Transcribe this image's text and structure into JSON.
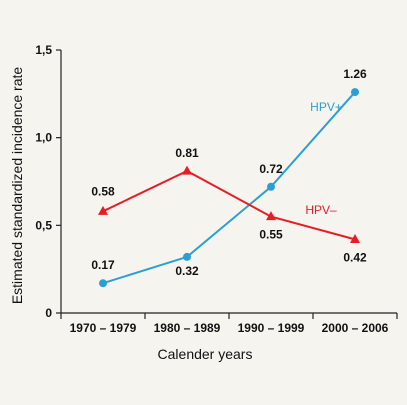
{
  "colors": {
    "background": "#f6f4ef",
    "hpv_positive": "#2a9fd6",
    "hpv_negative": "#e41e26",
    "axis": "#222222"
  },
  "chart_data": {
    "type": "line",
    "categories": [
      "1970 – 1979",
      "1980 – 1989",
      "1990 – 1999",
      "2000 – 2006"
    ],
    "xlabel": "Calender years",
    "ylabel": "Estimated standardized incidence rate",
    "ylim": [
      0,
      1.5
    ],
    "yticks": [
      0,
      0.5,
      1.0,
      1.5
    ],
    "ytick_labels": [
      "0",
      "0,5",
      "1,0",
      "1,5"
    ],
    "grid": false,
    "series": [
      {
        "name": "HPV+",
        "marker": "circle",
        "color": "#2a9fd6",
        "values": [
          0.17,
          0.32,
          0.72,
          1.26
        ],
        "labels": [
          "0.17",
          "0.32",
          "0.72",
          "1.26"
        ]
      },
      {
        "name": "HPV–",
        "marker": "triangle",
        "color": "#e41e26",
        "values": [
          0.58,
          0.81,
          0.55,
          0.42
        ],
        "labels": [
          "0.58",
          "0.81",
          "0.55",
          "0.42"
        ]
      }
    ]
  }
}
